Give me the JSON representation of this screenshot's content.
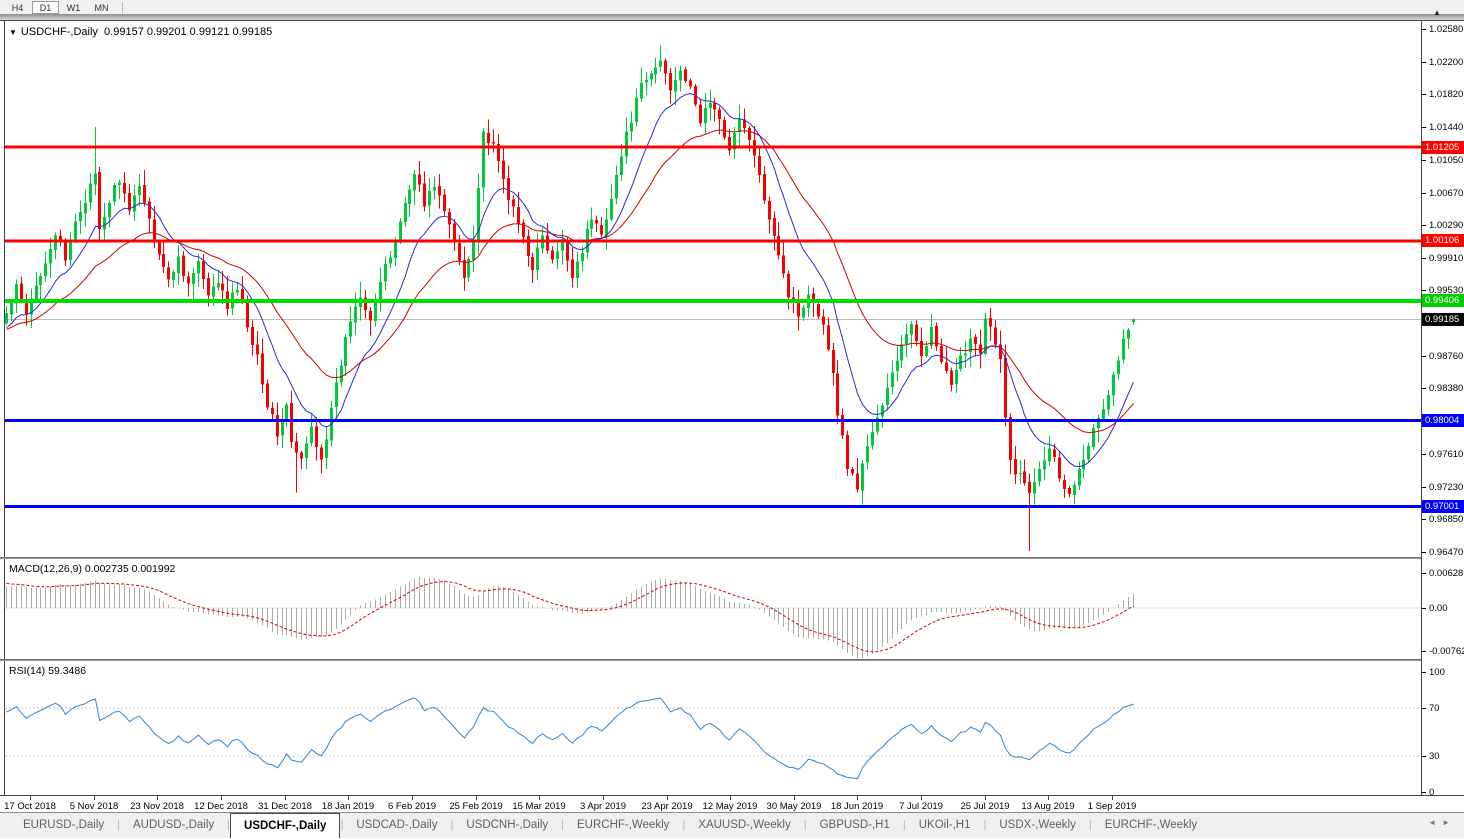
{
  "toolbar": {
    "timeframes": [
      {
        "label": "H4",
        "active": false
      },
      {
        "label": "D1",
        "active": true
      },
      {
        "label": "W1",
        "active": false
      },
      {
        "label": "MN",
        "active": false
      }
    ],
    "expand_marker": "▲"
  },
  "chart": {
    "title": {
      "dropdown_icon": "▼",
      "symbol": "USDCHF-,Daily",
      "ohlc_display": "0.99157 0.99201 0.99121 0.99185"
    },
    "current_price": 0.99185,
    "price_axis": {
      "ticks": [
        "1.02580",
        "1.02200",
        "1.01820",
        "1.01440",
        "1.01050",
        "1.00670",
        "1.00290",
        "0.99910",
        "0.99530",
        "0.98760",
        "0.98380",
        "0.97610",
        "0.97230",
        "0.96850",
        "0.96470"
      ],
      "badges": [
        {
          "value": "1.01205",
          "bg": "#FF0000"
        },
        {
          "value": "1.00106",
          "bg": "#FF0000"
        },
        {
          "value": "0.99406",
          "bg": "#00CC00"
        },
        {
          "value": "0.99185",
          "bg": "#000000"
        },
        {
          "value": "0.98004",
          "bg": "#0000FF"
        },
        {
          "value": "0.97001",
          "bg": "#0000FF"
        }
      ]
    },
    "levels": [
      {
        "price": 1.01205,
        "color_key": "level_red",
        "width": 3
      },
      {
        "price": 1.00106,
        "color_key": "level_red",
        "width": 3
      },
      {
        "price": 0.99406,
        "color_key": "level_green",
        "width": 4
      },
      {
        "price": 0.98004,
        "color_key": "level_blue",
        "width": 3
      },
      {
        "price": 0.97001,
        "color_key": "level_blue",
        "width": 3
      }
    ],
    "date_axis": [
      "17 Oct 2018",
      "5 Nov 2018",
      "23 Nov 2018",
      "12 Dec 2018",
      "31 Dec 2018",
      "18 Jan 2019",
      "6 Feb 2019",
      "25 Feb 2019",
      "15 Mar 2019",
      "3 Apr 2019",
      "23 Apr 2019",
      "12 May 2019",
      "30 May 2019",
      "18 Jun 2019",
      "7 Jul 2019",
      "25 Jul 2019",
      "13 Aug 2019",
      "1 Sep 2019"
    ],
    "chart_data": {
      "type": "candlestick",
      "symbol": "USDCHF",
      "timeframe": "Daily",
      "x_range": [
        "17 Oct 2018",
        "13 Sep 2019"
      ],
      "y_range": [
        0.964,
        1.0262
      ],
      "bars": 230,
      "last_candle": {
        "open": 0.99157,
        "high": 0.99201,
        "low": 0.99121,
        "close": 0.99185
      },
      "close_path": [
        [
          0,
          0.9925
        ],
        [
          2,
          0.9955
        ],
        [
          4,
          0.9922
        ],
        [
          6,
          0.9958
        ],
        [
          8,
          0.999
        ],
        [
          10,
          1.002
        ],
        [
          12,
          0.9985
        ],
        [
          14,
          1.0035
        ],
        [
          16,
          1.006
        ],
        [
          18,
          1.0085
        ],
        [
          19,
          1.002
        ],
        [
          21,
          1.0058
        ],
        [
          23,
          1.0085
        ],
        [
          25,
          1.004
        ],
        [
          27,
          1.008
        ],
        [
          29,
          1.0035
        ],
        [
          31,
          0.9998
        ],
        [
          33,
          0.9962
        ],
        [
          35,
          0.9992
        ],
        [
          37,
          0.996
        ],
        [
          39,
          0.9985
        ],
        [
          41,
          0.9942
        ],
        [
          43,
          0.9965
        ],
        [
          45,
          0.9932
        ],
        [
          47,
          0.9958
        ],
        [
          49,
          0.9912
        ],
        [
          51,
          0.9878
        ],
        [
          53,
          0.982
        ],
        [
          55,
          0.9785
        ],
        [
          57,
          0.9818
        ],
        [
          58,
          0.9772
        ],
        [
          60,
          0.9752
        ],
        [
          62,
          0.9792
        ],
        [
          64,
          0.9758
        ],
        [
          66,
          0.981
        ],
        [
          68,
          0.9868
        ],
        [
          70,
          0.992
        ],
        [
          72,
          0.995
        ],
        [
          74,
          0.9922
        ],
        [
          76,
          0.9962
        ],
        [
          78,
          0.9992
        ],
        [
          80,
          1.0035
        ],
        [
          82,
          1.0072
        ],
        [
          83,
          1.0095
        ],
        [
          85,
          1.0052
        ],
        [
          87,
          1.0078
        ],
        [
          89,
          1.0045
        ],
        [
          91,
          1.0008
        ],
        [
          93,
          0.9968
        ],
        [
          95,
          1.0018
        ],
        [
          96,
          1.0075
        ],
        [
          97,
          1.0138
        ],
        [
          99,
          1.0118
        ],
        [
          101,
          1.0082
        ],
        [
          103,
          1.0045
        ],
        [
          105,
          1.0014
        ],
        [
          107,
          0.9982
        ],
        [
          109,
          1.0015
        ],
        [
          111,
          0.9985
        ],
        [
          113,
          1.0008
        ],
        [
          115,
          0.9972
        ],
        [
          117,
          1.0002
        ],
        [
          119,
          1.0038
        ],
        [
          121,
          1.0018
        ],
        [
          123,
          1.0065
        ],
        [
          125,
          1.011
        ],
        [
          127,
          1.0155
        ],
        [
          129,
          1.019
        ],
        [
          131,
          1.0205
        ],
        [
          133,
          1.0222
        ],
        [
          135,
          1.019
        ],
        [
          137,
          1.0215
        ],
        [
          139,
          1.0185
        ],
        [
          141,
          1.0152
        ],
        [
          143,
          1.0175
        ],
        [
          145,
          1.0148
        ],
        [
          147,
          1.0122
        ],
        [
          149,
          1.015
        ],
        [
          151,
          1.0132
        ],
        [
          153,
          1.0082
        ],
        [
          155,
          1.0042
        ],
        [
          157,
          0.9998
        ],
        [
          159,
          0.9948
        ],
        [
          161,
          0.9925
        ],
        [
          163,
          0.9952
        ],
        [
          165,
          0.9928
        ],
        [
          167,
          0.989
        ],
        [
          169,
          0.9812
        ],
        [
          171,
          0.9748
        ],
        [
          173,
          0.9722
        ],
        [
          174,
          0.9752
        ],
        [
          176,
          0.9788
        ],
        [
          178,
          0.9815
        ],
        [
          180,
          0.9858
        ],
        [
          182,
          0.9888
        ],
        [
          184,
          0.9908
        ],
        [
          186,
          0.9882
        ],
        [
          188,
          0.9905
        ],
        [
          190,
          0.9868
        ],
        [
          192,
          0.9838
        ],
        [
          194,
          0.9872
        ],
        [
          196,
          0.9898
        ],
        [
          198,
          0.9885
        ],
        [
          199,
          0.992
        ],
        [
          200,
          0.9908
        ],
        [
          202,
          0.9868
        ],
        [
          203,
          0.9802
        ],
        [
          204,
          0.9752
        ],
        [
          206,
          0.9735
        ],
        [
          208,
          0.9718
        ],
        [
          210,
          0.9748
        ],
        [
          212,
          0.9772
        ],
        [
          214,
          0.9738
        ],
        [
          216,
          0.9712
        ],
        [
          218,
          0.9748
        ],
        [
          220,
          0.9775
        ],
        [
          222,
          0.98
        ],
        [
          224,
          0.9832
        ],
        [
          226,
          0.9872
        ],
        [
          227,
          0.9895
        ],
        [
          228,
          0.9902
        ],
        [
          229,
          0.99185
        ]
      ],
      "wick_overrides": {
        "18": [
          1.0144,
          null
        ],
        "59": [
          null,
          0.9716
        ],
        "97": [
          1.0142,
          null
        ],
        "133": [
          1.024,
          null
        ],
        "208": [
          null,
          0.9648
        ]
      },
      "moving_averages": [
        {
          "name": "fast-ema",
          "period": 12,
          "color_key": "ma_fast"
        },
        {
          "name": "slow-ema",
          "period": 30,
          "color_key": "ma_slow"
        }
      ]
    }
  },
  "macd": {
    "label": "MACD(12,26,9)",
    "values_display": "0.002735 0.001992",
    "main_value": 0.002735,
    "signal_value": 0.001992,
    "axis": [
      "0.006286",
      "0.00",
      "-0.00762"
    ],
    "y_range": [
      -0.00762,
      0.006286
    ]
  },
  "rsi": {
    "label": "RSI(14)",
    "value": "59.3486",
    "axis": [
      "100",
      "70",
      "30",
      "0"
    ],
    "level_lines": [
      70,
      30
    ],
    "y_range": [
      0,
      100
    ]
  },
  "tabs": {
    "items": [
      {
        "label": "EURUSD-,Daily",
        "active": false
      },
      {
        "label": "AUDUSD-,Daily",
        "active": false
      },
      {
        "label": "USDCHF-,Daily",
        "active": true
      },
      {
        "label": "USDCAD-,Daily",
        "active": false
      },
      {
        "label": "USDCNH-,Daily",
        "active": false
      },
      {
        "label": "EURCHF-,Weekly",
        "active": false
      },
      {
        "label": "XAUUSD-,Weekly",
        "active": false
      },
      {
        "label": "GBPUSD-,H1",
        "active": false
      },
      {
        "label": "UKOil-,H1",
        "active": false
      },
      {
        "label": "USDX-,Weekly",
        "active": false
      },
      {
        "label": "EURCHF-,Weekly",
        "active": false
      }
    ],
    "scroll_left": "◄",
    "scroll_right": "►"
  },
  "colors": {
    "bull_candle": "#00C93C",
    "bear_candle": "#F80000",
    "ma_fast": "#2A2AD4",
    "ma_slow": "#CC0000",
    "level_red": "#FF0000",
    "level_green": "#00DD00",
    "level_blue": "#0000FF",
    "current_line": "#BBBBBB",
    "macd_hist": "#ABABAB",
    "macd_signal": "#D40000",
    "rsi_line": "#2E86D4",
    "rsi_level": "#C8C8C8",
    "macd_zero": "#DCDCDC"
  }
}
